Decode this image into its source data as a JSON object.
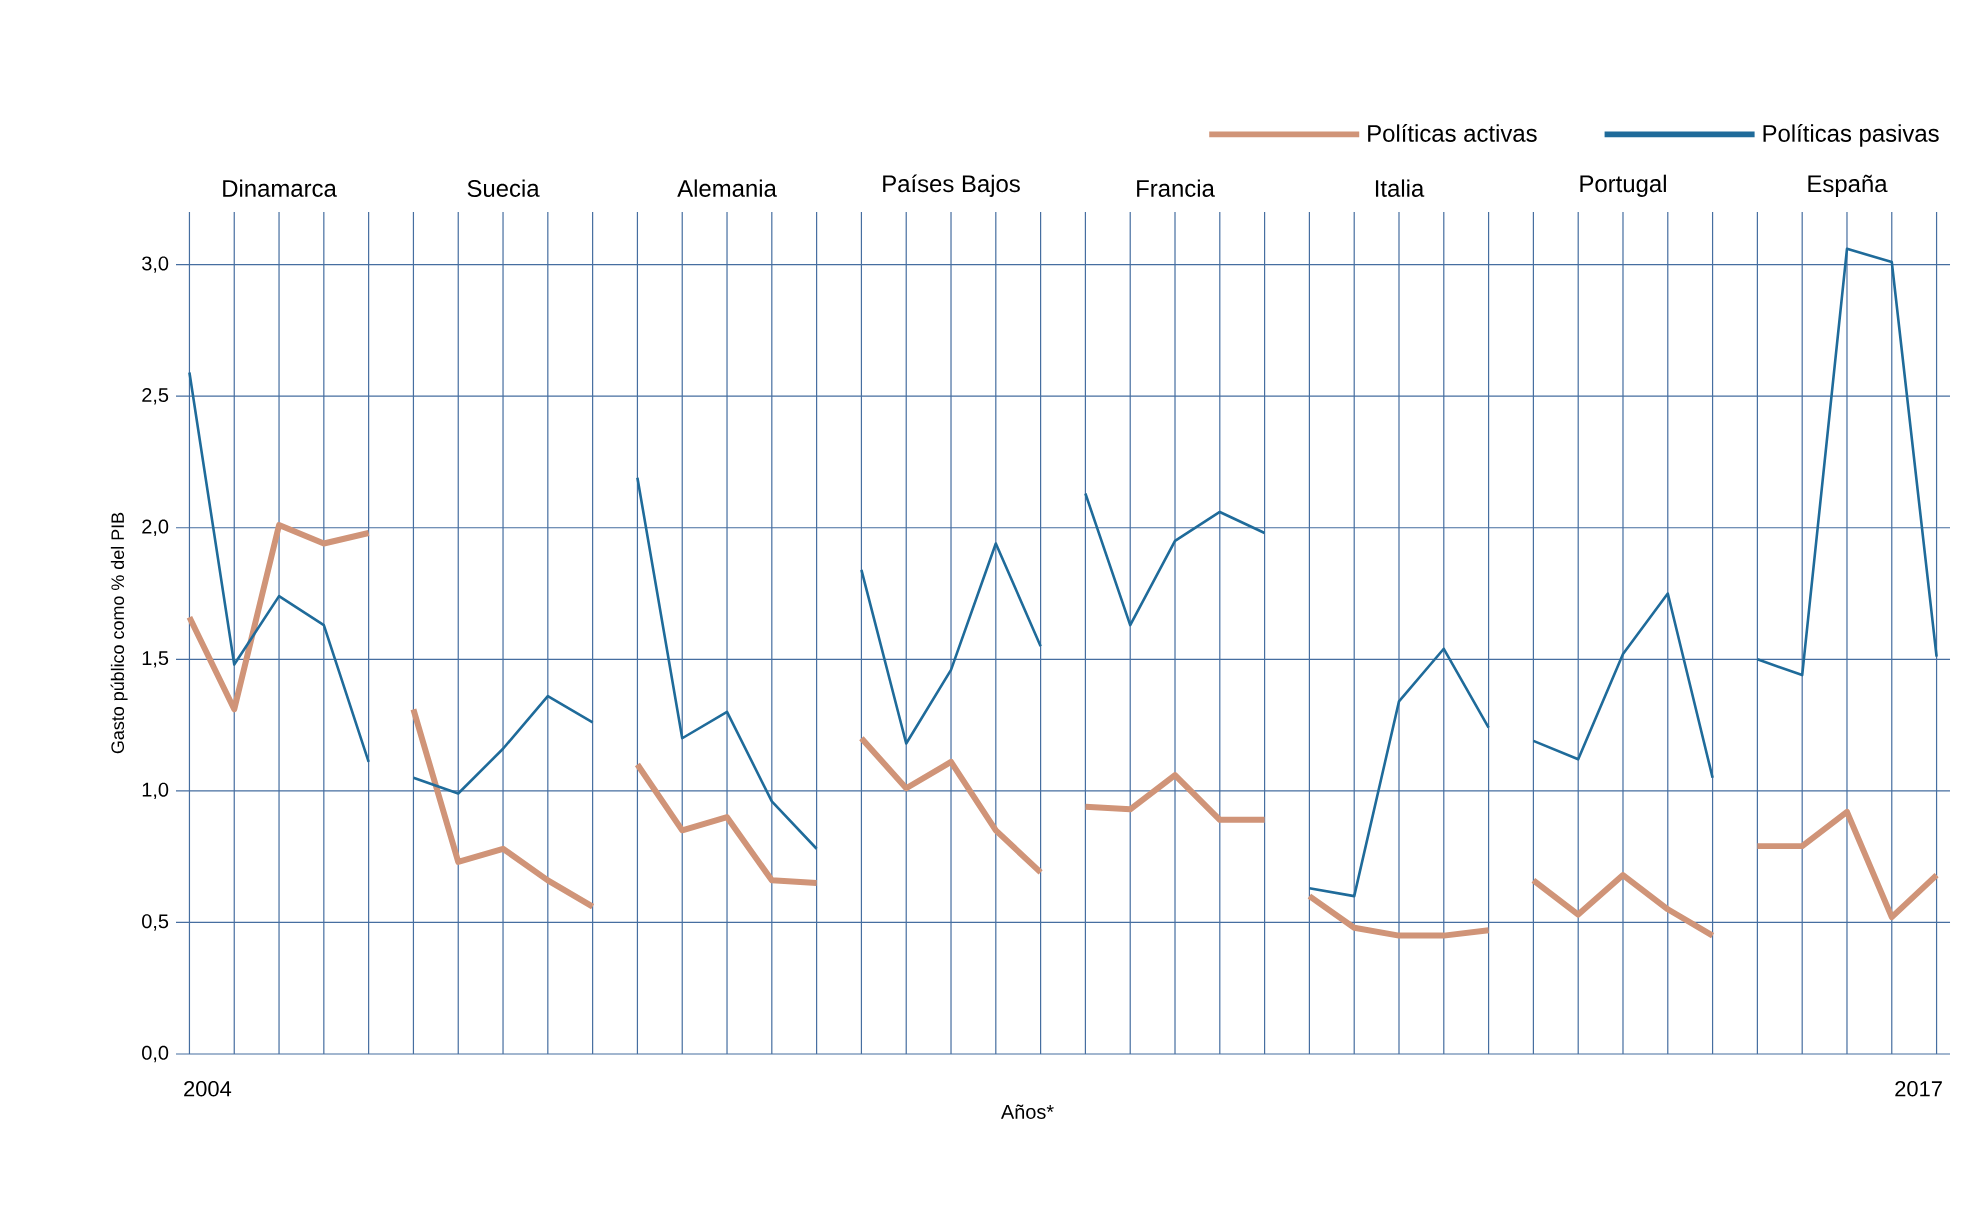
{
  "chart_data": {
    "type": "line",
    "ylabel": "Gasto público como % del PIB",
    "xlabel": "Años*",
    "annotations": [
      "2004",
      "2017"
    ],
    "legend": "top right",
    "grid": true,
    "categories": [
      null,
      null,
      "Dinamarca",
      null,
      null,
      null,
      null,
      "Suecia",
      null,
      null,
      null,
      null,
      "Alemania",
      null,
      null,
      null,
      null,
      "Países Bajos",
      null,
      null,
      null,
      null,
      "Francia",
      null,
      null,
      null,
      null,
      "Italia",
      null,
      null,
      null,
      null,
      "Portugal",
      null,
      null,
      null,
      null,
      "España",
      null,
      null
    ],
    "ylim": [
      0,
      3.2
    ],
    "yticks": [
      {
        "value": 0,
        "label": "0,0"
      },
      {
        "value": 0.5,
        "label": "0,5"
      },
      {
        "value": 1,
        "label": "1,0"
      },
      {
        "value": 1.5,
        "label": "1,5"
      },
      {
        "value": 2,
        "label": "2,0"
      },
      {
        "value": 2.5,
        "label": "2,5"
      },
      {
        "value": 3,
        "label": "3,0"
      }
    ],
    "series": [
      {
        "name": "Políticas activas",
        "color": "#d09478",
        "values": [
          1.66,
          1.31,
          2.01,
          1.94,
          1.98,
          null,
          null,
          null,
          null,
          null,
          null,
          null,
          null,
          null,
          null,
          null,
          null,
          null,
          null,
          null,
          null,
          null,
          null,
          null,
          null,
          null,
          null,
          null,
          null,
          null,
          null,
          null,
          null,
          null,
          null,
          null,
          null,
          null,
          null,
          null
        ]
      },
      {
        "name": "Políticas pasivas",
        "color": "#1f6b9a",
        "values": [
          2.59,
          1.48,
          1.74,
          1.63,
          1.11,
          null,
          null,
          null,
          null,
          null,
          null,
          null,
          null,
          null,
          null,
          null,
          null,
          null,
          null,
          null,
          null,
          null,
          null,
          null,
          null,
          null,
          null,
          null,
          null,
          null,
          null,
          null,
          null,
          null,
          null,
          null,
          null,
          null,
          null,
          null
        ]
      },
      {
        "color": "#d09478",
        "values": [
          null,
          null,
          null,
          null,
          null,
          1.31,
          0.73,
          0.78,
          0.66,
          0.56,
          null,
          null,
          null,
          null,
          null,
          null,
          null,
          null,
          null,
          null,
          null,
          null,
          null,
          null,
          null,
          null,
          null,
          null,
          null,
          null,
          null,
          null,
          null,
          null,
          null,
          null,
          null,
          null,
          null,
          null
        ]
      },
      {
        "color": "#1f6b9a",
        "values": [
          null,
          null,
          null,
          null,
          null,
          1.05,
          0.99,
          1.16,
          1.36,
          1.26,
          null,
          null,
          null,
          null,
          null,
          null,
          null,
          null,
          null,
          null,
          null,
          null,
          null,
          null,
          null,
          null,
          null,
          null,
          null,
          null,
          null,
          null,
          null,
          null,
          null,
          null,
          null,
          null,
          null,
          null
        ]
      },
      {
        "color": "#d09478",
        "values": [
          null,
          null,
          null,
          null,
          null,
          null,
          null,
          null,
          null,
          null,
          1.1,
          0.85,
          0.9,
          0.66,
          0.65,
          null,
          null,
          null,
          null,
          null,
          null,
          null,
          null,
          null,
          null,
          null,
          null,
          null,
          null,
          null,
          null,
          null,
          null,
          null,
          null,
          null,
          null,
          null,
          null,
          null
        ]
      },
      {
        "color": "#1f6b9a",
        "values": [
          null,
          null,
          null,
          null,
          null,
          null,
          null,
          null,
          null,
          null,
          2.19,
          1.2,
          1.3,
          0.96,
          0.78,
          null,
          null,
          null,
          null,
          null,
          null,
          null,
          null,
          null,
          null,
          null,
          null,
          null,
          null,
          null,
          null,
          null,
          null,
          null,
          null,
          null,
          null,
          null,
          null,
          null
        ]
      },
      {
        "color": "#d09478",
        "values": [
          null,
          null,
          null,
          null,
          null,
          null,
          null,
          null,
          null,
          null,
          null,
          null,
          null,
          null,
          null,
          1.2,
          1.01,
          1.11,
          0.85,
          0.69,
          null,
          null,
          null,
          null,
          null,
          null,
          null,
          null,
          null,
          null,
          null,
          null,
          null,
          null,
          null,
          null,
          null,
          null,
          null,
          null
        ]
      },
      {
        "color": "#1f6b9a",
        "values": [
          null,
          null,
          null,
          null,
          null,
          null,
          null,
          null,
          null,
          null,
          null,
          null,
          null,
          null,
          null,
          1.84,
          1.18,
          1.46,
          1.94,
          1.55,
          null,
          null,
          null,
          null,
          null,
          null,
          null,
          null,
          null,
          null,
          null,
          null,
          null,
          null,
          null,
          null,
          null,
          null,
          null,
          null
        ]
      },
      {
        "color": "#d09478",
        "values": [
          null,
          null,
          null,
          null,
          null,
          null,
          null,
          null,
          null,
          null,
          null,
          null,
          null,
          null,
          null,
          null,
          null,
          null,
          null,
          null,
          0.94,
          0.93,
          1.06,
          0.89,
          0.89,
          null,
          null,
          null,
          null,
          null,
          null,
          null,
          null,
          null,
          null,
          null,
          null,
          null,
          null,
          null
        ]
      },
      {
        "color": "#1f6b9a",
        "values": [
          null,
          null,
          null,
          null,
          null,
          null,
          null,
          null,
          null,
          null,
          null,
          null,
          null,
          null,
          null,
          null,
          null,
          null,
          null,
          null,
          2.13,
          1.63,
          1.95,
          2.06,
          1.98,
          null,
          null,
          null,
          null,
          null,
          null,
          null,
          null,
          null,
          null,
          null,
          null,
          null,
          null,
          null
        ]
      },
      {
        "color": "#d09478",
        "values": [
          null,
          null,
          null,
          null,
          null,
          null,
          null,
          null,
          null,
          null,
          null,
          null,
          null,
          null,
          null,
          null,
          null,
          null,
          null,
          null,
          null,
          null,
          null,
          null,
          null,
          0.6,
          0.48,
          0.45,
          0.45,
          0.47,
          null,
          null,
          null,
          null,
          null,
          null,
          null,
          null,
          null,
          null
        ]
      },
      {
        "color": "#1f6b9a",
        "values": [
          null,
          null,
          null,
          null,
          null,
          null,
          null,
          null,
          null,
          null,
          null,
          null,
          null,
          null,
          null,
          null,
          null,
          null,
          null,
          null,
          null,
          null,
          null,
          null,
          null,
          0.63,
          0.6,
          1.34,
          1.54,
          1.24,
          null,
          null,
          null,
          null,
          null,
          null,
          null,
          null,
          null,
          null
        ]
      },
      {
        "color": "#d09478",
        "values": [
          null,
          null,
          null,
          null,
          null,
          null,
          null,
          null,
          null,
          null,
          null,
          null,
          null,
          null,
          null,
          null,
          null,
          null,
          null,
          null,
          null,
          null,
          null,
          null,
          null,
          null,
          null,
          null,
          null,
          null,
          0.66,
          0.53,
          0.68,
          0.55,
          0.45,
          null,
          null,
          null,
          null,
          null
        ]
      },
      {
        "color": "#1f6b9a",
        "values": [
          null,
          null,
          null,
          null,
          null,
          null,
          null,
          null,
          null,
          null,
          null,
          null,
          null,
          null,
          null,
          null,
          null,
          null,
          null,
          null,
          null,
          null,
          null,
          null,
          null,
          null,
          null,
          null,
          null,
          null,
          1.19,
          1.12,
          1.52,
          1.75,
          1.05,
          null,
          null,
          null,
          null,
          null
        ]
      },
      {
        "color": "#d09478",
        "values": [
          null,
          null,
          null,
          null,
          null,
          null,
          null,
          null,
          null,
          null,
          null,
          null,
          null,
          null,
          null,
          null,
          null,
          null,
          null,
          null,
          null,
          null,
          null,
          null,
          null,
          null,
          null,
          null,
          null,
          null,
          null,
          null,
          null,
          null,
          null,
          0.79,
          0.79,
          0.92,
          0.52,
          0.68
        ]
      },
      {
        "color": "#1f6b9a",
        "values": [
          null,
          null,
          null,
          null,
          null,
          null,
          null,
          null,
          null,
          null,
          null,
          null,
          null,
          null,
          null,
          null,
          null,
          null,
          null,
          null,
          null,
          null,
          null,
          null,
          null,
          null,
          null,
          null,
          null,
          null,
          null,
          null,
          null,
          null,
          null,
          1.5,
          1.44,
          3.06,
          3.01,
          1.51
        ]
      }
    ]
  }
}
